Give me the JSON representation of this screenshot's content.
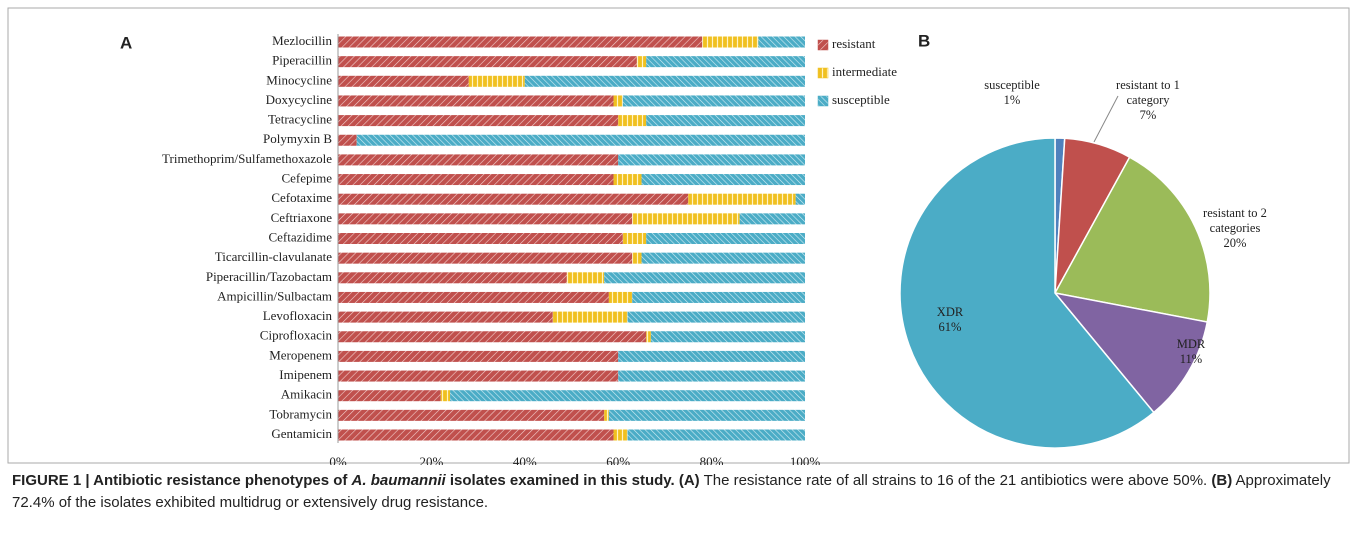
{
  "chart_data": [
    {
      "type": "stacked-barh",
      "panel": "A",
      "categories": [
        "Mezlocillin",
        "Piperacillin",
        "Minocycline",
        "Doxycycline",
        "Tetracycline",
        "Polymyxin B",
        "Trimethoprim/Sulfamethoxazole",
        "Cefepime",
        "Cefotaxime",
        "Ceftriaxone",
        "Ceftazidime",
        "Ticarcillin-clavulanate",
        "Piperacillin/Tazobactam",
        "Ampicillin/Sulbactam",
        "Levofloxacin",
        "Ciprofloxacin",
        "Meropenem",
        "Imipenem",
        "Amikacin",
        "Tobramycin",
        "Gentamicin"
      ],
      "series": [
        {
          "name": "resistant",
          "color": "#c0504d",
          "values": [
            78,
            64,
            28,
            59,
            60,
            4,
            60,
            59,
            75,
            63,
            61,
            63,
            49,
            58,
            46,
            66,
            60,
            60,
            22,
            57,
            59
          ]
        },
        {
          "name": "intermediate",
          "color": "#f0c020",
          "values": [
            12,
            2,
            12,
            2,
            6,
            0,
            0,
            6,
            23,
            23,
            5,
            2,
            8,
            5,
            16,
            1,
            0,
            0,
            2,
            1,
            3
          ]
        },
        {
          "name": "susceptible",
          "color": "#4bacc6",
          "values": [
            10,
            34,
            60,
            39,
            34,
            96,
            40,
            35,
            2,
            14,
            34,
            35,
            43,
            37,
            38,
            33,
            40,
            40,
            76,
            42,
            38
          ]
        }
      ],
      "xlim": [
        0,
        100
      ],
      "xticks": [
        {
          "value": 0,
          "label": "0%"
        },
        {
          "value": 20,
          "label": "20%"
        },
        {
          "value": 40,
          "label": "40%"
        },
        {
          "value": 60,
          "label": "60%"
        },
        {
          "value": 80,
          "label": "80%"
        },
        {
          "value": 100,
          "label": "100%"
        }
      ],
      "legend": "right"
    },
    {
      "type": "pie",
      "panel": "B",
      "categories": [
        "susceptible",
        "resistant to 1 category",
        "resistant to 2 categories",
        "MDR",
        "XDR"
      ],
      "values": [
        1,
        7,
        20,
        11,
        61
      ],
      "value_labels": [
        "1%",
        "7%",
        "20%",
        "11%",
        "61%"
      ],
      "colors": [
        "#4f81bd",
        "#c0504d",
        "#9bbb59",
        "#8064a2",
        "#4bacc6"
      ]
    }
  ],
  "caption": {
    "label": "FIGURE 1 | Antibiotic resistance phenotypes of ",
    "species": "A. baumannii",
    "title_end": " isolates examined in this study.",
    "a": "(A)",
    "a_text": " The resistance rate of all strains to 16 of the 21 antibiotics were above 50%.",
    "b": "(B)",
    "b_text": " Approximately 72.4% of the isolates exhibited multidrug or extensively drug resistance."
  }
}
